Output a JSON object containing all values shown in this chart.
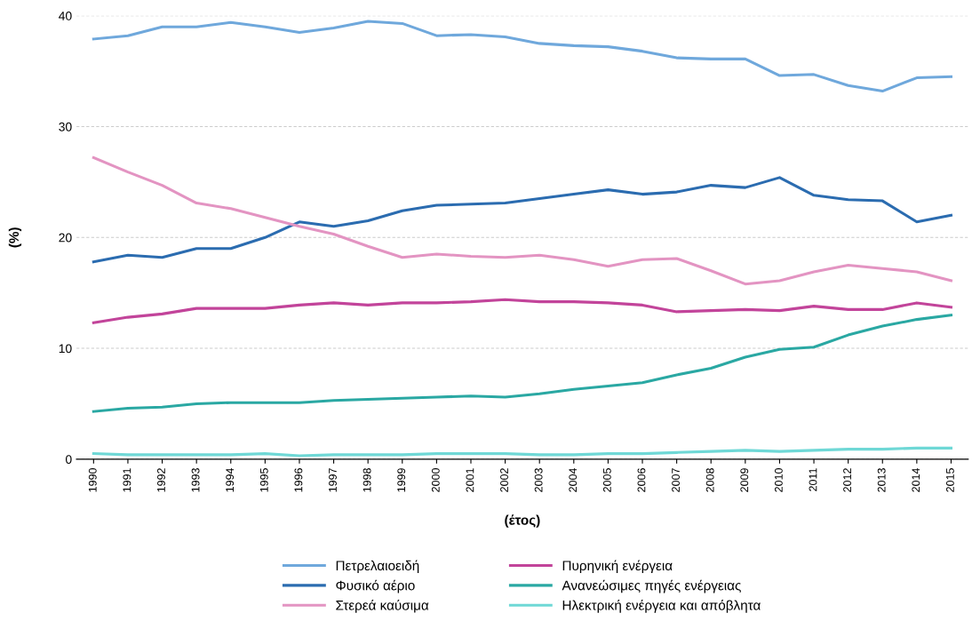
{
  "chart_data": {
    "type": "line",
    "xlabel": "(έτος)",
    "ylabel": "(%)",
    "categories": [
      "1990",
      "1991",
      "1992",
      "1993",
      "1994",
      "1995",
      "1996",
      "1997",
      "1998",
      "1999",
      "2000",
      "2001",
      "2002",
      "2003",
      "2004",
      "2005",
      "2006",
      "2007",
      "2008",
      "2009",
      "2010",
      "2011",
      "2012",
      "2013",
      "2014",
      "2015"
    ],
    "ylim": [
      0,
      40
    ],
    "yticks": [
      0,
      10,
      20,
      30,
      40
    ],
    "grid": "y",
    "legend": "bottom",
    "marker": "none",
    "line_style": "solid",
    "series": [
      {
        "name": "Πετρελαιοειδή",
        "color": "#6fa8dc",
        "values": [
          37.9,
          38.2,
          39.0,
          39.0,
          39.4,
          39.0,
          38.5,
          38.9,
          39.5,
          39.3,
          38.2,
          38.3,
          38.1,
          37.5,
          37.3,
          37.2,
          36.8,
          36.2,
          36.1,
          36.1,
          34.6,
          34.7,
          33.7,
          33.2,
          34.4,
          34.5
        ]
      },
      {
        "name": "Φυσικό αέριο",
        "color": "#2b6cb0",
        "values": [
          17.8,
          18.4,
          18.2,
          19.0,
          19.0,
          20.0,
          21.4,
          21.0,
          21.5,
          22.4,
          22.9,
          23.0,
          23.1,
          23.5,
          23.9,
          24.3,
          23.9,
          24.1,
          24.7,
          24.5,
          25.4,
          23.8,
          23.4,
          23.3,
          21.4,
          22.0
        ]
      },
      {
        "name": "Στερεά καύσιμα",
        "color": "#e394c2",
        "values": [
          27.2,
          25.9,
          24.7,
          23.1,
          22.6,
          21.8,
          21.0,
          20.3,
          19.2,
          18.2,
          18.5,
          18.3,
          18.2,
          18.4,
          18.0,
          17.4,
          18.0,
          18.1,
          17.0,
          15.8,
          16.1,
          16.9,
          17.5,
          17.2,
          16.9,
          16.1
        ]
      },
      {
        "name": "Πυρηνική ενέργεια",
        "color": "#c2449a",
        "values": [
          12.3,
          12.8,
          13.1,
          13.6,
          13.6,
          13.6,
          13.9,
          14.1,
          13.9,
          14.1,
          14.1,
          14.2,
          14.4,
          14.2,
          14.2,
          14.1,
          13.9,
          13.3,
          13.4,
          13.5,
          13.4,
          13.8,
          13.5,
          13.5,
          14.1,
          13.7
        ]
      },
      {
        "name": "Ανανεώσιμες πηγές ενέργειας",
        "color": "#2aa8a3",
        "values": [
          4.3,
          4.6,
          4.7,
          5.0,
          5.1,
          5.1,
          5.1,
          5.3,
          5.4,
          5.5,
          5.6,
          5.7,
          5.6,
          5.9,
          6.3,
          6.6,
          6.9,
          7.6,
          8.2,
          9.2,
          9.9,
          10.1,
          11.2,
          12.0,
          12.6,
          13.0
        ]
      },
      {
        "name": "Ηλεκτρική ενέργεια και απόβλητα",
        "color": "#6fd8d6",
        "values": [
          0.5,
          0.4,
          0.4,
          0.4,
          0.4,
          0.5,
          0.3,
          0.4,
          0.4,
          0.4,
          0.5,
          0.5,
          0.5,
          0.4,
          0.4,
          0.5,
          0.5,
          0.6,
          0.7,
          0.8,
          0.7,
          0.8,
          0.9,
          0.9,
          1.0,
          1.0
        ]
      }
    ]
  }
}
